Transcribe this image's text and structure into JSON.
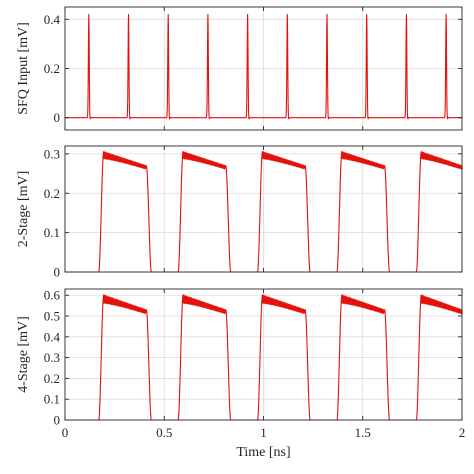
{
  "chart_data": [
    {
      "type": "line",
      "ylabel": "SFQ Input [mV]",
      "xlim": [
        0,
        2
      ],
      "ylim": [
        -0.05,
        0.45
      ],
      "yticks": [
        0,
        0.2,
        0.4
      ],
      "ytick_labels": [
        "0",
        "0.2",
        "0.4"
      ],
      "grid": true,
      "color": "#e3120b",
      "pulse_times_ns": [
        0.12,
        0.32,
        0.52,
        0.72,
        0.92,
        1.12,
        1.32,
        1.52,
        1.72,
        1.92
      ],
      "pulse_peak": 0.42,
      "baseline": 0,
      "series": [
        {
          "values_description": ""
        }
      ]
    },
    {
      "type": "line",
      "ylabel": "2-Stage [mV]",
      "xlim": [
        0,
        2
      ],
      "ylim": [
        0,
        0.32
      ],
      "yticks": [
        0,
        0.1,
        0.2,
        0.3
      ],
      "ytick_labels": [
        "0",
        "0.1",
        "0.2",
        "0.3"
      ],
      "grid": true,
      "color": "#e3120b",
      "high_intervals_ns": [
        [
          0.17,
          0.41
        ],
        [
          0.57,
          0.81
        ],
        [
          0.97,
          1.21
        ],
        [
          1.37,
          1.61
        ],
        [
          1.77,
          2.0
        ]
      ],
      "high_level_start": 0.31,
      "high_level_end": 0.27,
      "ripple_amplitude": 0.018,
      "low_level": 0
    },
    {
      "type": "line",
      "ylabel": "4-Stage [mV]",
      "xlabel": "Time [ns]",
      "xlim": [
        0,
        2
      ],
      "ylim": [
        0,
        0.63
      ],
      "xticks": [
        0,
        0.5,
        1,
        1.5,
        2
      ],
      "xtick_labels": [
        "0",
        "0.5",
        "1",
        "1.5",
        "2"
      ],
      "yticks": [
        0,
        0.1,
        0.2,
        0.3,
        0.4,
        0.5,
        0.6
      ],
      "ytick_labels": [
        "0",
        "0.1",
        "0.2",
        "0.3",
        "0.4",
        "0.5",
        "0.6"
      ],
      "grid": true,
      "color": "#e3120b",
      "high_intervals_ns": [
        [
          0.17,
          0.41
        ],
        [
          0.57,
          0.81
        ],
        [
          0.97,
          1.21
        ],
        [
          1.37,
          1.61
        ],
        [
          1.77,
          2.0
        ]
      ],
      "high_level_start": 0.61,
      "high_level_end": 0.53,
      "ripple_amplitude": 0.04,
      "low_level": 0
    }
  ]
}
